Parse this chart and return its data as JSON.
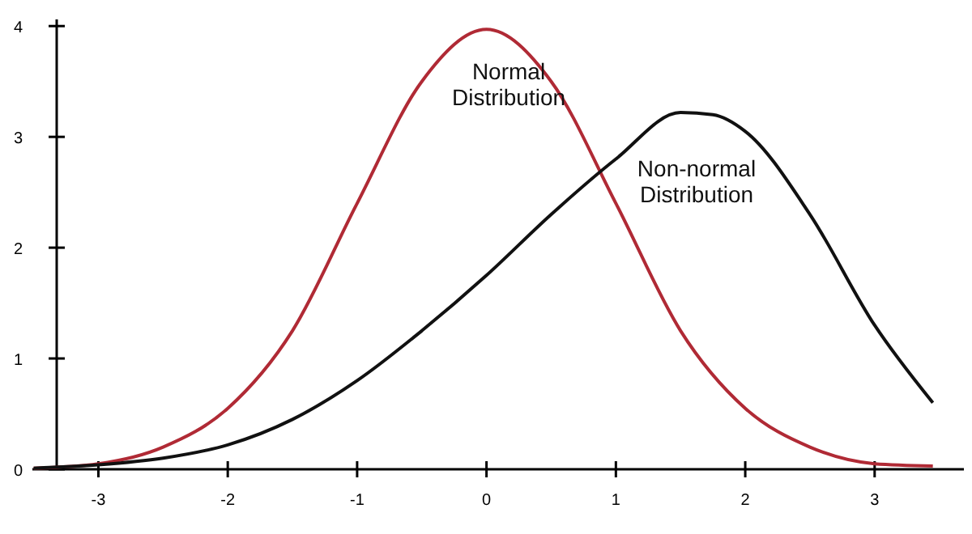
{
  "chart_data": {
    "type": "line",
    "xlim": [
      -3.51,
      3.69
    ],
    "ylim": [
      0,
      4.06
    ],
    "xticks": [
      -3,
      -2,
      -1,
      0,
      1,
      2,
      3
    ],
    "yticks": [
      0,
      1,
      2,
      3,
      4
    ],
    "grid": false,
    "marker": "none",
    "line_style": "solid",
    "series": [
      {
        "color": "#b02a35",
        "x": [
          -3.5,
          -3,
          -2.5,
          -2,
          -1.5,
          -1,
          -0.5,
          0,
          0.5,
          1,
          1.5,
          2,
          2.5,
          3,
          3.45
        ],
        "values": [
          0.01,
          0.05,
          0.2,
          0.55,
          1.25,
          2.4,
          3.5,
          3.97,
          3.5,
          2.4,
          1.25,
          0.55,
          0.2,
          0.05,
          0.03
        ]
      },
      {
        "color": "#111111",
        "x": [
          -3.5,
          -3,
          -2.5,
          -2,
          -1.5,
          -1,
          -0.5,
          0,
          0.5,
          1,
          1.5,
          1.75,
          2,
          2.5,
          3,
          3.45
        ],
        "values": [
          0.01,
          0.04,
          0.1,
          0.22,
          0.45,
          0.8,
          1.25,
          1.75,
          2.3,
          2.8,
          3.22,
          3.2,
          3.05,
          2.3,
          1.3,
          0.6
        ]
      }
    ],
    "annotations": [
      "Normal\nDistribution",
      "Non-normal\nDistribution"
    ]
  }
}
